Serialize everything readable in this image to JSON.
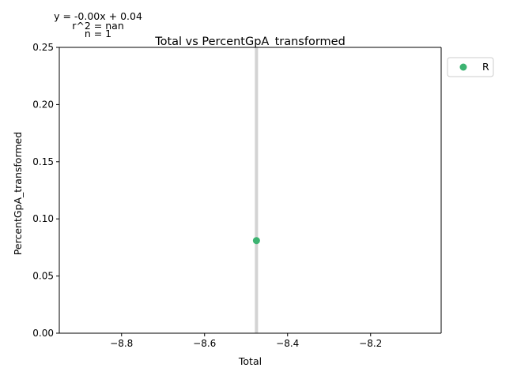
{
  "chart_data": {
    "type": "scatter",
    "title": "Total vs PercentGpA_transformed",
    "xlabel": "Total",
    "ylabel": "PercentGpA_transformed",
    "xlim": [
      -8.95,
      -8.03
    ],
    "ylim": [
      0.0,
      0.25
    ],
    "xticks": [
      -8.8,
      -8.6,
      -8.4,
      -8.2
    ],
    "xtick_labels": [
      "−8.8",
      "−8.6",
      "−8.4",
      "−8.2"
    ],
    "yticks": [
      0.0,
      0.05,
      0.1,
      0.15,
      0.2,
      0.25
    ],
    "ytick_labels": [
      "0.00",
      "0.05",
      "0.10",
      "0.15",
      "0.20",
      "0.25"
    ],
    "grid": false,
    "legend_position": "outside-top-right",
    "series": [
      {
        "name": "R",
        "color": "#3cb371",
        "points": [
          {
            "x": -8.475,
            "y": 0.081
          }
        ]
      }
    ],
    "vertical_band": {
      "x": -8.475,
      "y_range": [
        0.0,
        0.25
      ],
      "color": "#d3d3d3"
    },
    "annotations": {
      "equation": "y = -0.00x + 0.04",
      "r2": "r^2 = nan",
      "n": "n = 1"
    }
  }
}
